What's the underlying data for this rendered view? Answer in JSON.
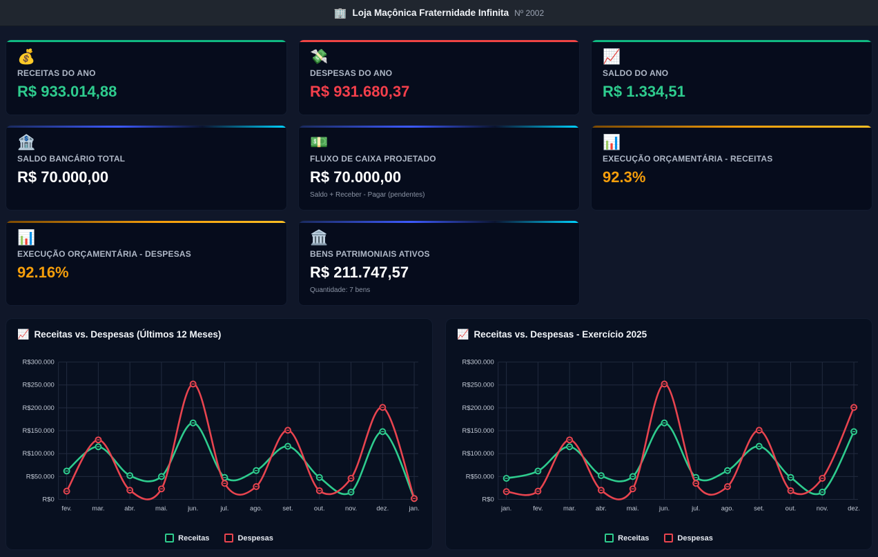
{
  "header": {
    "icon": "🏢",
    "title": "Loja Maçônica Fraternidade Infinita",
    "number": "Nº 2002"
  },
  "colors": {
    "page_bg": "#101729",
    "card_bg": "#060c1c",
    "panel_bg": "#081020",
    "accent_green": "#10b981",
    "accent_red": "#ef4444",
    "accent_cyan": "#00d4ff",
    "accent_blue": "#3d5afe",
    "accent_orange": "#f59e0b",
    "value_green": "#2ecc8e",
    "value_red": "#f43f4b",
    "series_receitas": "#2ecc8e",
    "series_despesas": "#e8444f"
  },
  "cards": [
    {
      "icon": "💰",
      "label": "RECEITAS DO ANO",
      "value": "R$ 933.014,88"
    },
    {
      "icon": "💸",
      "label": "DESPESAS DO ANO",
      "value": "R$ 931.680,37"
    },
    {
      "icon": "📈",
      "label": "SALDO DO ANO",
      "value": "R$ 1.334,51"
    },
    {
      "icon": "🏦",
      "label": "SALDO BANCÁRIO TOTAL",
      "value": "R$ 70.000,00"
    },
    {
      "icon": "💵",
      "label": "FLUXO DE CAIXA PROJETADO",
      "value": "R$ 70.000,00",
      "subtitle": "Saldo + Receber - Pagar (pendentes)"
    },
    {
      "icon": "📊",
      "label": "EXECUÇÃO ORÇAMENTÁRIA - RECEITAS",
      "value": "92.3%"
    },
    {
      "icon": "📊",
      "label": "EXECUÇÃO ORÇAMENTÁRIA - DESPESAS",
      "value": "92.16%"
    },
    {
      "icon": "🏛️",
      "label": "BENS PATRIMONIAIS ATIVOS",
      "value": "R$ 211.747,57",
      "subtitle": "Quantidade: 7 bens"
    }
  ],
  "chart_data": [
    {
      "type": "line",
      "title": "Receitas vs. Despesas (Últimos 12 Meses)",
      "title_icon": "📈",
      "categories": [
        "fev.",
        "mar.",
        "abr.",
        "mai.",
        "jun.",
        "jul.",
        "ago.",
        "set.",
        "out.",
        "nov.",
        "dez.",
        "jan."
      ],
      "series": [
        {
          "name": "Receitas",
          "color": "#2ecc8e",
          "values": [
            62000,
            115000,
            52000,
            50000,
            167000,
            48000,
            63000,
            116000,
            48000,
            16000,
            148000,
            2000
          ]
        },
        {
          "name": "Despesas",
          "color": "#e8444f",
          "values": [
            18000,
            130000,
            20000,
            23000,
            252000,
            35000,
            28000,
            151000,
            19000,
            46000,
            201000,
            2000
          ]
        }
      ],
      "ylim": [
        0,
        300000
      ],
      "ytick_step": 50000,
      "ytick_prefix": "R$",
      "grid": true,
      "legend_position": "bottom"
    },
    {
      "type": "line",
      "title": "Receitas vs. Despesas - Exercício 2025",
      "title_icon": "📈",
      "categories": [
        "jan.",
        "fev.",
        "mar.",
        "abr.",
        "mai.",
        "jun.",
        "jul.",
        "ago.",
        "set.",
        "out.",
        "nov.",
        "dez."
      ],
      "series": [
        {
          "name": "Receitas",
          "color": "#2ecc8e",
          "values": [
            46000,
            62000,
            115000,
            52000,
            50000,
            167000,
            48000,
            63000,
            116000,
            48000,
            16000,
            148000
          ]
        },
        {
          "name": "Despesas",
          "color": "#e8444f",
          "values": [
            17000,
            18000,
            130000,
            20000,
            23000,
            252000,
            35000,
            28000,
            151000,
            19000,
            46000,
            201000
          ]
        }
      ],
      "ylim": [
        0,
        300000
      ],
      "ytick_step": 50000,
      "ytick_prefix": "R$",
      "grid": true,
      "legend_position": "bottom"
    }
  ]
}
